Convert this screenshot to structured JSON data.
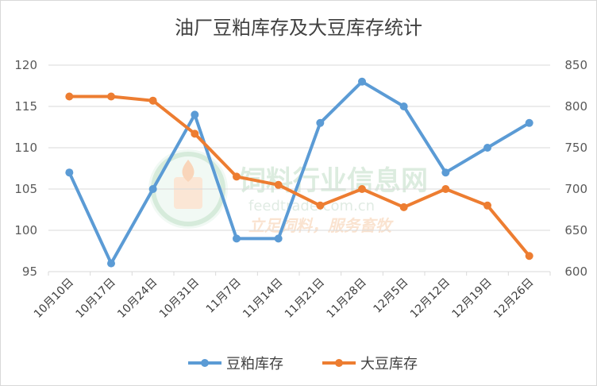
{
  "chart_data": {
    "type": "line",
    "title": "油厂豆粕库存及大豆库存统计",
    "categories": [
      "10月10日",
      "10月17日",
      "10月24日",
      "10月31日",
      "11月7日",
      "11月14日",
      "11月21日",
      "11月28日",
      "12月5日",
      "12月12日",
      "12月19日",
      "12月26日"
    ],
    "series": [
      {
        "name": "豆粕库存",
        "axis": "left",
        "color": "#5b9bd5",
        "values": [
          107,
          96,
          105,
          114,
          99,
          99,
          113,
          118,
          115,
          107,
          110,
          113
        ]
      },
      {
        "name": "大豆库存",
        "axis": "right",
        "color": "#ed7d31",
        "values": [
          812,
          812,
          807,
          767,
          715,
          705,
          680,
          700,
          678,
          700,
          680,
          619
        ]
      }
    ],
    "y_left": {
      "ylim": [
        95,
        120
      ],
      "ticks": [
        "95",
        "100",
        "105",
        "110",
        "115",
        "120"
      ]
    },
    "y_right": {
      "ylim": [
        600,
        850
      ],
      "ticks": [
        "600",
        "650",
        "700",
        "750",
        "800",
        "850"
      ]
    },
    "grid": true,
    "legend_position": "bottom"
  },
  "watermark": {
    "text": "饲料行业信息网",
    "url": "feedtrade.com.cn",
    "slogan": "立足饲料，服务畜牧",
    "logo_color": "#8bc79a"
  }
}
